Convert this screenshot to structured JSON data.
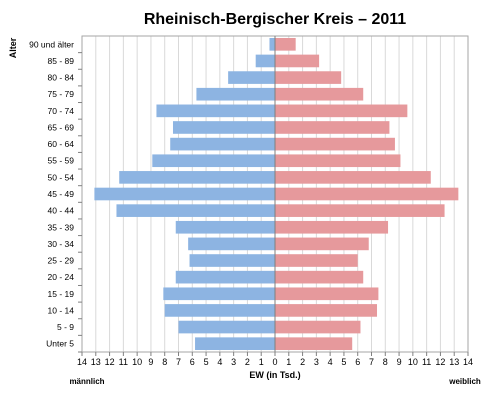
{
  "chart_data": {
    "type": "bar",
    "orientation": "horizontal-population-pyramid",
    "title": "Rheinisch-Bergischer Kreis – 2011",
    "ylabel": "Alter",
    "xlabel": "EW (in Tsd.)",
    "left_label": "männlich",
    "right_label": "weiblich",
    "xlim": [
      -14,
      14
    ],
    "x_ticks": [
      "14",
      "13",
      "12",
      "11",
      "10",
      "9",
      "8",
      "7",
      "6",
      "5",
      "4",
      "3",
      "2",
      "1",
      "0",
      "1",
      "2",
      "3",
      "4",
      "5",
      "6",
      "7",
      "8",
      "9",
      "10",
      "11",
      "12",
      "13",
      "14"
    ],
    "grid": true,
    "categories": [
      "90 und älter",
      "85 - 89",
      "80 - 84",
      "75 - 79",
      "70 - 74",
      "65 - 69",
      "60 - 64",
      "55 - 59",
      "50 - 54",
      "45 - 49",
      "40 - 44",
      "35 - 39",
      "30 - 34",
      "25 - 29",
      "20 - 24",
      "15 - 19",
      "10 - 14",
      "5 - 9",
      "Unter 5"
    ],
    "series": [
      {
        "name": "männlich",
        "color": "#8db4e2",
        "values": [
          0.4,
          1.4,
          3.4,
          5.7,
          8.6,
          7.4,
          7.6,
          8.9,
          11.3,
          13.1,
          11.5,
          7.2,
          6.3,
          6.2,
          7.2,
          8.1,
          8.0,
          7.0,
          5.8
        ]
      },
      {
        "name": "weiblich",
        "color": "#e6999c",
        "values": [
          1.5,
          3.2,
          4.8,
          6.4,
          9.6,
          8.3,
          8.7,
          9.1,
          11.3,
          13.3,
          12.3,
          8.2,
          6.8,
          6.0,
          6.4,
          7.5,
          7.4,
          6.2,
          5.6
        ]
      }
    ]
  }
}
